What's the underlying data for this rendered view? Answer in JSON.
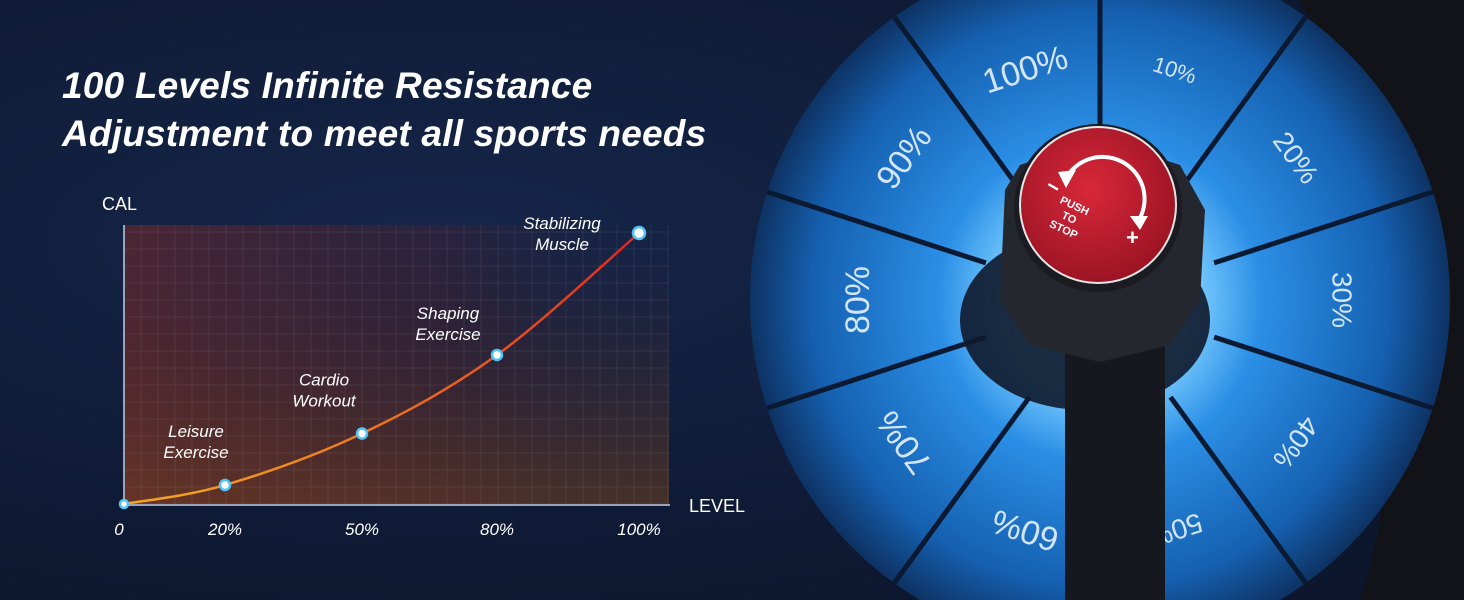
{
  "headline": {
    "line1": "100 Levels Infinite Resistance",
    "line2": "Adjustment to meet all sports needs"
  },
  "chart_data": {
    "type": "line",
    "title": "",
    "xlabel": "LEVEL",
    "ylabel": "CAL",
    "x_tick_labels": [
      "0",
      "20%",
      "50%",
      "80%",
      "100%"
    ],
    "x": [
      0,
      20,
      50,
      80,
      100
    ],
    "ylim": [
      0,
      100
    ],
    "grid": true,
    "series": [
      {
        "name": "Calories",
        "values": [
          0,
          7,
          26,
          55,
          100
        ]
      }
    ],
    "annotations": [
      {
        "x": 20,
        "text_line1": "Leisure",
        "text_line2": "Exercise"
      },
      {
        "x": 50,
        "text_line1": "Cardio",
        "text_line2": "Workout"
      },
      {
        "x": 80,
        "text_line1": "Shaping",
        "text_line2": "Exercise"
      },
      {
        "x": 100,
        "text_line1": "Stabilizing",
        "text_line2": "Muscle"
      }
    ],
    "line_color_start": "#f5a623",
    "line_color_end": "#e0261f",
    "point_color": "#4fc3f7"
  },
  "dial": {
    "labels": [
      "10%",
      "20%",
      "30%",
      "40%",
      "50%",
      "60%",
      "70%",
      "80%",
      "90%",
      "100%"
    ],
    "knob_text": [
      "PUSH",
      "TO",
      "STOP"
    ],
    "minus": "−",
    "plus": "+",
    "cap_color": "#c41e2e",
    "ring_color": "#1f7fd6"
  }
}
